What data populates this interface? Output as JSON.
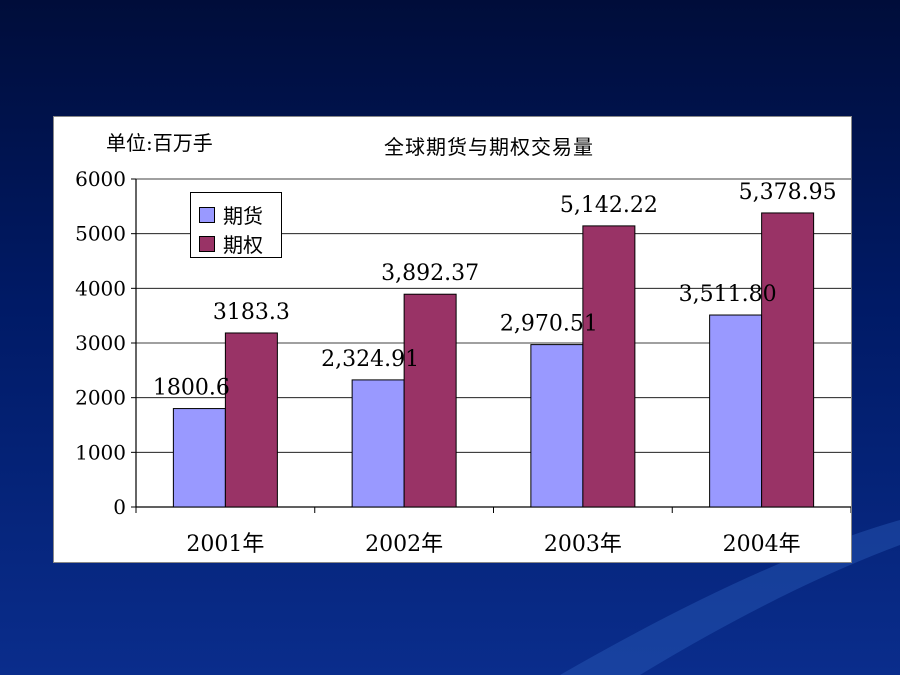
{
  "chart_data": {
    "type": "bar",
    "title": "全球期货与期权交易量",
    "unit_label": "单位:百万手",
    "categories": [
      "2001年",
      "2002年",
      "2003年",
      "2004年"
    ],
    "series": [
      {
        "name": "期货",
        "color": "#9999ff",
        "values": [
          1800.6,
          2324.91,
          2970.51,
          3511.8
        ],
        "labels": [
          "1800.6",
          "2,324.91",
          "2,970.51",
          "3,511.80"
        ]
      },
      {
        "name": "期权",
        "color": "#993366",
        "values": [
          3183.3,
          3892.37,
          5142.22,
          5378.95
        ],
        "labels": [
          "3183.3",
          "3,892.37",
          "5,142.22",
          "5,378.95"
        ]
      }
    ],
    "ylim": [
      0,
      6000
    ],
    "yticks": [
      "0",
      "1000",
      "2000",
      "3000",
      "4000",
      "5000",
      "6000"
    ],
    "grid": true,
    "legend_position": "top-left"
  }
}
